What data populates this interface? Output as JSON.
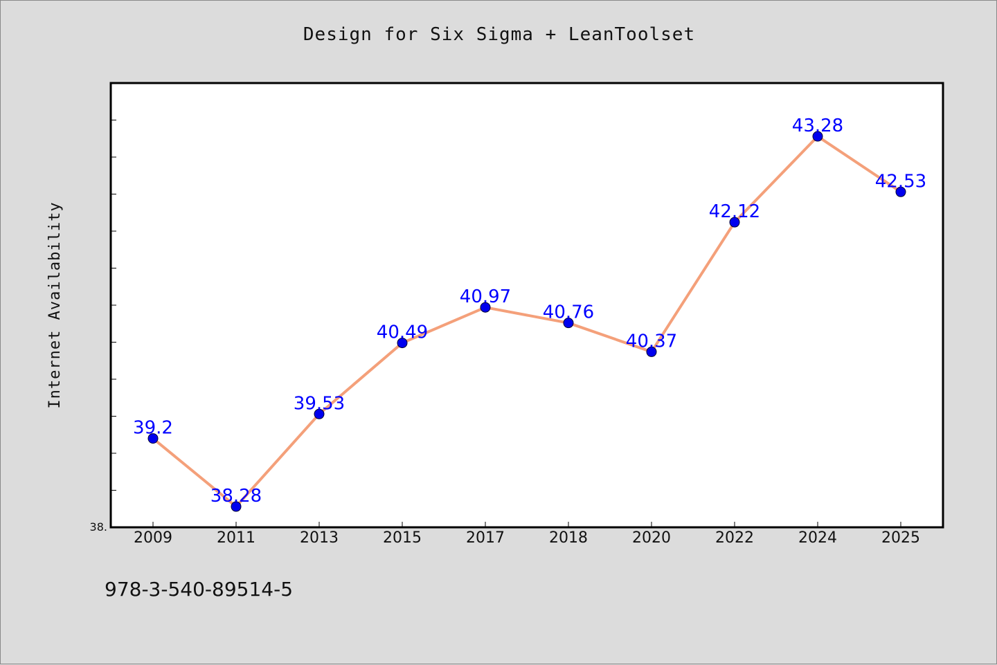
{
  "chart_data": {
    "type": "line",
    "title": "Design for Six Sigma + LeanToolset",
    "xlabel": "",
    "ylabel": "Internet Availability",
    "categories": [
      "2009",
      "2011",
      "2013",
      "2015",
      "2017",
      "2018",
      "2020",
      "2022",
      "2024",
      "2025"
    ],
    "series": [
      {
        "values": [
          39.2,
          38.28,
          39.53,
          40.49,
          40.97,
          40.76,
          40.37,
          42.12,
          43.28,
          42.53
        ],
        "data_labels": [
          "39.2",
          "38.28",
          "39.53",
          "40.49",
          "40.97",
          "40.76",
          "40.37",
          "42.12",
          "43.28",
          "42.53"
        ],
        "line_color": "#f4a07a",
        "marker_color": "#0000ee",
        "label_color": "#0000ff"
      }
    ],
    "ylim": [
      38.0,
      44.0
    ],
    "y_tick_labels": [
      "38."
    ],
    "y_minor_tick_step": 0.5,
    "grid": false,
    "legend": "none"
  },
  "annotation": {
    "text": "978-3-540-89514-5"
  },
  "colors": {
    "background": "#dcdcdc",
    "plot_background": "#ffffff",
    "axis": "#000000"
  }
}
